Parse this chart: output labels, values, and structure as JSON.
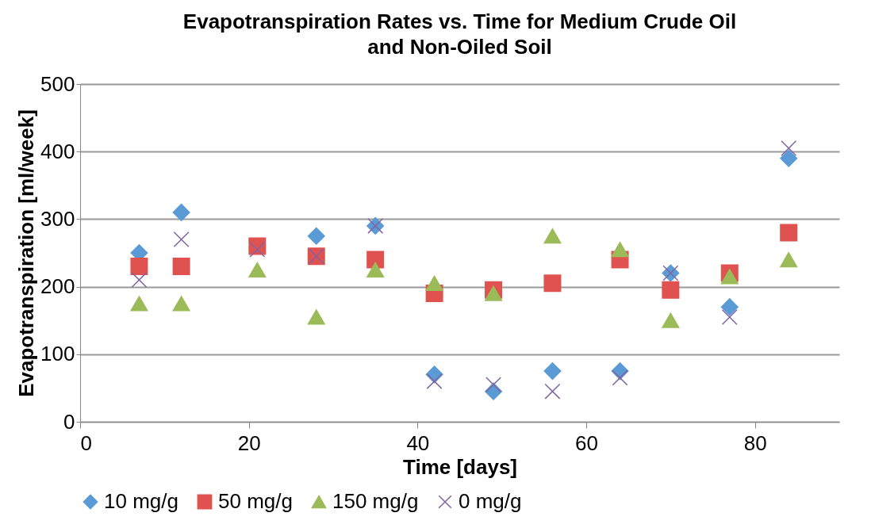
{
  "chart_data": {
    "type": "scatter",
    "title": "Evapotranspiration Rates vs. Time for Medium Crude Oil and Non-Oiled Soil",
    "xlabel": "Time [days]",
    "ylabel": "Evapotranspiration [ml/week]",
    "x": [
      7,
      12,
      21,
      28,
      35,
      42,
      49,
      56,
      64,
      70,
      77,
      84
    ],
    "series": [
      {
        "name": "10 mg/g",
        "color": "#5b9bd5",
        "marker": "diamond",
        "values": [
          250,
          310,
          null,
          275,
          290,
          70,
          45,
          75,
          75,
          220,
          170,
          390
        ]
      },
      {
        "name": "50 mg/g",
        "color": "#e0524f",
        "marker": "square",
        "values": [
          230,
          230,
          260,
          245,
          240,
          190,
          195,
          205,
          240,
          195,
          220,
          280
        ]
      },
      {
        "name": "150 mg/g",
        "color": "#9bbb59",
        "marker": "triangle",
        "values": [
          175,
          175,
          225,
          155,
          225,
          205,
          190,
          275,
          255,
          150,
          215,
          240
        ]
      },
      {
        "name": "0 mg/g",
        "color": "#8064a2",
        "marker": "cross",
        "values": [
          210,
          270,
          255,
          245,
          290,
          60,
          55,
          45,
          65,
          220,
          155,
          405
        ]
      }
    ],
    "xlim": [
      0,
      90
    ],
    "xticks": [
      0,
      20,
      40,
      60,
      80
    ],
    "ylim": [
      0,
      500
    ],
    "yticks": [
      0,
      100,
      200,
      300,
      400,
      500
    ],
    "grid": "y",
    "legend": "bottom"
  }
}
